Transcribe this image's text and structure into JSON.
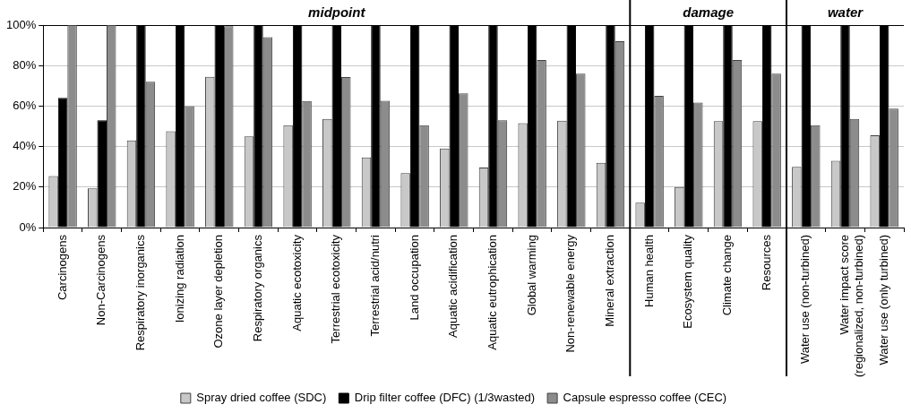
{
  "chart_data": {
    "type": "bar",
    "categories": [
      "Carcinogens",
      "Non-Carcinogens",
      "Respiratory inorganics",
      "Ionizing radiation",
      "Ozone layer depletion",
      "Respiratory organics",
      "Aquatic ecotoxicity",
      "Terrestrial ecotoxicity",
      "Terrestrial acid/nutri",
      "Land occupation",
      "Aquatic acidification",
      "Aquatic eutrophication",
      "Global warming",
      "Non-renewable energy",
      "Mineral extraction",
      "Human health",
      "Ecosystem quality",
      "Climate change",
      "Resources",
      "Water use (non-turbined)",
      "Water impact score\n(regionalized, non-turbined)",
      "Water use (only turbined)"
    ],
    "series": [
      {
        "name": "Spray dried coffee (SDC)",
        "color": "#c8c8c8",
        "values": [
          25.5,
          19.4,
          43,
          47.6,
          74.5,
          45,
          50.6,
          53.6,
          34.6,
          26.9,
          39,
          29.6,
          51.5,
          52.8,
          32,
          12.3,
          20,
          52.6,
          52.6,
          30,
          33,
          45.6
        ]
      },
      {
        "name": "Drip filter coffee (DFC) (1/3wasted)",
        "color": "#000000",
        "values": [
          64,
          53,
          100,
          100,
          100,
          100,
          100,
          100,
          100,
          100,
          100,
          100,
          100,
          100,
          100,
          100,
          100,
          100,
          100,
          100,
          100,
          100
        ]
      },
      {
        "name": "Capsule espresso coffee (CEC)",
        "color": "#8c8c8c",
        "values": [
          100,
          100,
          72,
          60,
          99.5,
          94,
          62.5,
          74.3,
          62.6,
          50.6,
          66.3,
          53,
          82.7,
          76,
          92,
          65,
          61.7,
          82.7,
          76,
          50.6,
          53.6,
          58.7
        ]
      }
    ],
    "ylim": [
      0,
      100
    ],
    "yticks": [
      {
        "value": 0,
        "label": "0%"
      },
      {
        "value": 20,
        "label": "20%"
      },
      {
        "value": 40,
        "label": "40%"
      },
      {
        "value": 60,
        "label": "60%"
      },
      {
        "value": 80,
        "label": "80%"
      },
      {
        "value": 100,
        "label": "100%"
      }
    ],
    "grid": "y",
    "legend": "bottom",
    "annotations": [
      "midpoint",
      "damage",
      "water"
    ]
  }
}
